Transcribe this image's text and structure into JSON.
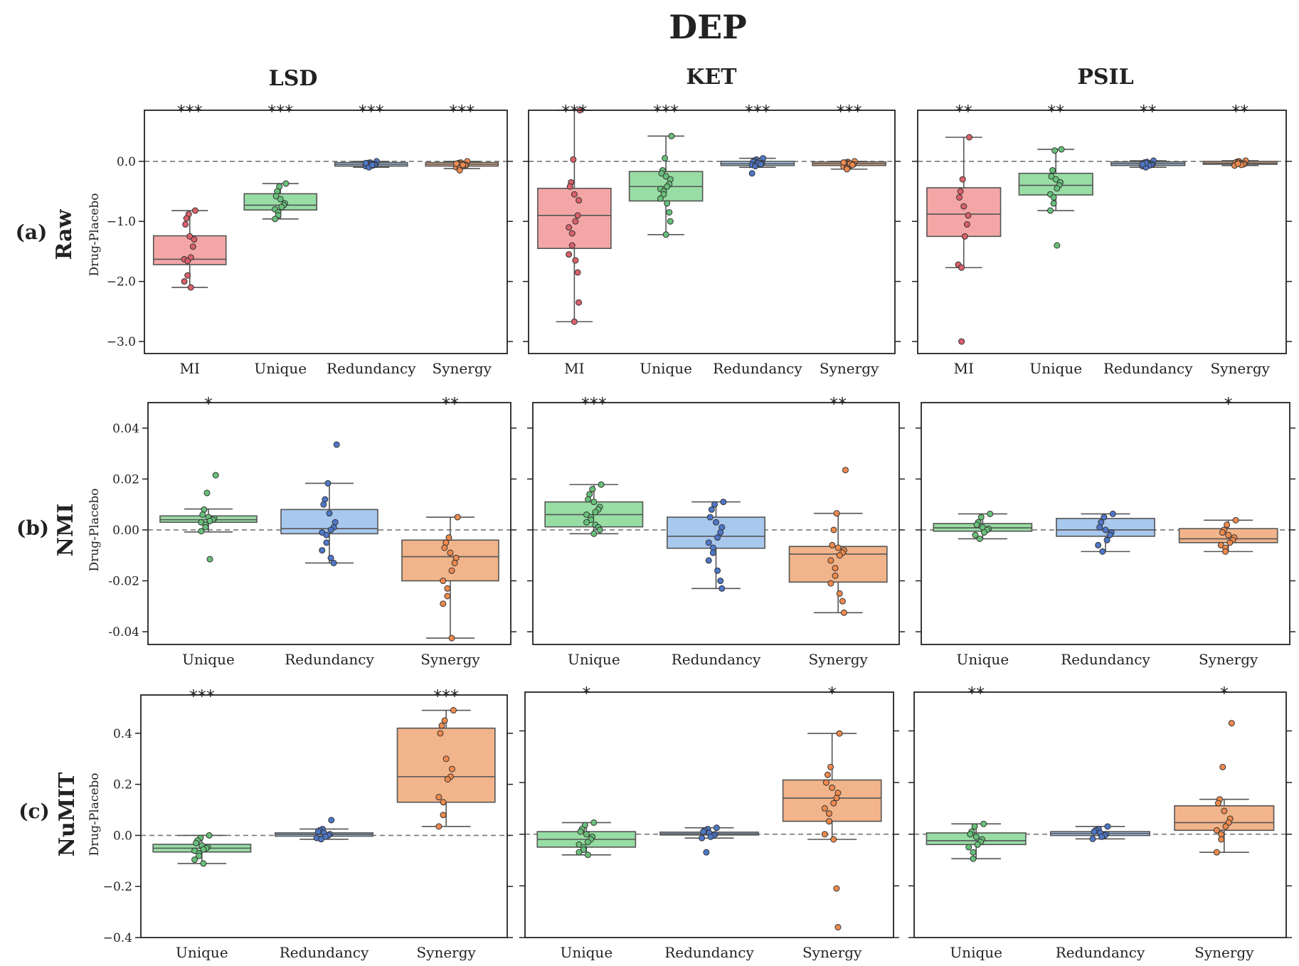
{
  "figure": {
    "title": "DEP",
    "columns": [
      "LSD",
      "KET",
      "PSIL"
    ],
    "rows": [
      {
        "tag": "(a)",
        "label": "Raw",
        "ylabel": "Drug-Placebo"
      },
      {
        "tag": "(b)",
        "label": "NMI",
        "ylabel": "Drug-Placebo"
      },
      {
        "tag": "(c)",
        "label": "NuMIT",
        "ylabel": "Drug-Placebo"
      }
    ],
    "colors": {
      "MI": "#f4a6a6",
      "Unique": "#98dda4",
      "Redundancy": "#a8c8ee",
      "Synergy": "#f2b48a",
      "MI_pt": "#d9606a",
      "Unique_pt": "#68c07a",
      "Redundancy_pt": "#4f77c8",
      "Synergy_pt": "#ee8a4e"
    }
  },
  "chart_data": [
    {
      "type": "box",
      "row": 0,
      "col": 0,
      "ylim": [
        -3.2,
        0.85
      ],
      "yticks": [
        0.0,
        -1.0,
        -2.0,
        -3.0
      ],
      "ytick_labels": [
        "0.0",
        "−1.0",
        "−2.0",
        "−3.0"
      ],
      "categories": [
        "MI",
        "Unique",
        "Redundancy",
        "Synergy"
      ],
      "significance": [
        "***",
        "***",
        "***",
        "***"
      ],
      "boxes": [
        {
          "q1": -1.72,
          "median": -1.63,
          "q3": -1.24,
          "whislo": -2.1,
          "whishi": -0.82,
          "points": [
            -0.82,
            -0.88,
            -0.95,
            -1.05,
            -1.25,
            -1.3,
            -1.42,
            -1.6,
            -1.63,
            -1.66,
            -1.9,
            -2.0,
            -2.1
          ]
        },
        {
          "q1": -0.81,
          "median": -0.73,
          "q3": -0.54,
          "whislo": -0.96,
          "whishi": -0.37,
          "points": [
            -0.37,
            -0.42,
            -0.5,
            -0.58,
            -0.63,
            -0.7,
            -0.73,
            -0.76,
            -0.8,
            -0.85,
            -0.9,
            -0.96
          ]
        },
        {
          "q1": -0.08,
          "median": -0.05,
          "q3": -0.02,
          "whislo": -0.1,
          "whishi": 0.0,
          "points": [
            0.0,
            -0.02,
            -0.03,
            -0.04,
            -0.05,
            -0.05,
            -0.06,
            -0.07,
            -0.08,
            -0.09,
            -0.1,
            -0.03,
            -0.06
          ]
        },
        {
          "q1": -0.08,
          "median": -0.05,
          "q3": -0.02,
          "whislo": -0.12,
          "whishi": 0.0,
          "points": [
            0.0,
            -0.02,
            -0.03,
            -0.04,
            -0.05,
            -0.06,
            -0.07,
            -0.08,
            -0.1,
            -0.12,
            -0.15,
            -0.04,
            -0.06
          ]
        }
      ]
    },
    {
      "type": "box",
      "row": 0,
      "col": 1,
      "ylim": [
        -3.2,
        0.85
      ],
      "yticks": [
        0.0,
        -1.0,
        -2.0,
        -3.0
      ],
      "categories": [
        "MI",
        "Unique",
        "Redundancy",
        "Synergy"
      ],
      "significance": [
        "***",
        "***",
        "***",
        "***"
      ],
      "boxes": [
        {
          "q1": -1.45,
          "median": -0.9,
          "q3": -0.45,
          "whislo": -2.67,
          "whishi": 0.85,
          "points": [
            0.85,
            0.03,
            -0.35,
            -0.42,
            -0.55,
            -0.65,
            -0.9,
            -1.0,
            -1.1,
            -1.2,
            -1.4,
            -1.55,
            -1.65,
            -1.85,
            -2.35,
            -2.67
          ]
        },
        {
          "q1": -0.66,
          "median": -0.42,
          "q3": -0.17,
          "whislo": -1.22,
          "whishi": 0.42,
          "points": [
            0.42,
            0.05,
            -0.15,
            -0.2,
            -0.25,
            -0.3,
            -0.38,
            -0.42,
            -0.46,
            -0.5,
            -0.55,
            -0.62,
            -0.7,
            -0.85,
            -1.0,
            -1.22
          ]
        },
        {
          "q1": -0.07,
          "median": -0.04,
          "q3": 0.0,
          "whislo": -0.1,
          "whishi": 0.05,
          "points": [
            0.05,
            0.03,
            0.01,
            -0.01,
            -0.02,
            -0.03,
            -0.04,
            -0.05,
            -0.06,
            -0.07,
            -0.08,
            -0.2,
            -0.03,
            -0.05
          ]
        },
        {
          "q1": -0.07,
          "median": -0.04,
          "q3": -0.01,
          "whislo": -0.13,
          "whishi": 0.0,
          "points": [
            0.0,
            -0.01,
            -0.02,
            -0.03,
            -0.04,
            -0.05,
            -0.06,
            -0.07,
            -0.09,
            -0.11,
            -0.13,
            -0.02,
            -0.04,
            -0.06
          ]
        }
      ]
    },
    {
      "type": "box",
      "row": 0,
      "col": 2,
      "ylim": [
        -3.2,
        0.85
      ],
      "yticks": [
        0.0,
        -1.0,
        -2.0,
        -3.0
      ],
      "categories": [
        "MI",
        "Unique",
        "Redundancy",
        "Synergy"
      ],
      "significance": [
        "**",
        "**",
        "**",
        "**"
      ],
      "boxes": [
        {
          "q1": -1.25,
          "median": -0.88,
          "q3": -0.44,
          "whislo": -1.77,
          "whishi": 0.4,
          "points": [
            0.4,
            -0.3,
            -0.5,
            -0.6,
            -0.75,
            -0.9,
            -1.05,
            -1.25,
            -1.72,
            -1.77,
            -3.0
          ]
        },
        {
          "q1": -0.56,
          "median": -0.4,
          "q3": -0.2,
          "whislo": -0.82,
          "whishi": 0.2,
          "points": [
            0.2,
            0.18,
            -0.15,
            -0.25,
            -0.3,
            -0.35,
            -0.4,
            -0.45,
            -0.55,
            -0.6,
            -0.7,
            -0.82,
            -1.4
          ]
        },
        {
          "q1": -0.07,
          "median": -0.04,
          "q3": -0.01,
          "whislo": -0.1,
          "whishi": 0.01,
          "points": [
            0.01,
            -0.01,
            -0.02,
            -0.03,
            -0.04,
            -0.05,
            -0.06,
            -0.07,
            -0.08,
            -0.1,
            -0.03,
            -0.05
          ]
        },
        {
          "q1": -0.05,
          "median": -0.03,
          "q3": 0.0,
          "whislo": -0.07,
          "whishi": 0.01,
          "points": [
            0.01,
            0.0,
            -0.01,
            -0.02,
            -0.03,
            -0.04,
            -0.05,
            -0.06,
            -0.07,
            -0.02,
            -0.04
          ]
        }
      ]
    },
    {
      "type": "box",
      "row": 1,
      "col": 0,
      "ylim": [
        -0.045,
        0.05
      ],
      "yticks": [
        0.04,
        0.02,
        0.0,
        -0.02,
        -0.04
      ],
      "ytick_labels": [
        "0.04",
        "0.02",
        "0.00",
        "-0.02",
        "-0.04"
      ],
      "categories": [
        "Unique",
        "Redundancy",
        "Synergy"
      ],
      "significance": [
        "*",
        "",
        "**"
      ],
      "boxes": [
        {
          "q1": 0.003,
          "median": 0.004,
          "q3": 0.0055,
          "whislo": -0.0008,
          "whishi": 0.0082,
          "points": [
            0.0215,
            0.0145,
            0.008,
            0.006,
            0.005,
            0.0045,
            0.004,
            0.0035,
            0.003,
            0.002,
            0.001,
            -0.0005,
            -0.0115
          ]
        },
        {
          "q1": -0.0015,
          "median": 0.0005,
          "q3": 0.008,
          "whislo": -0.013,
          "whishi": 0.0183,
          "points": [
            0.0335,
            0.0183,
            0.012,
            0.01,
            0.0065,
            0.003,
            0.001,
            0.0,
            -0.001,
            -0.002,
            -0.005,
            -0.008,
            -0.011,
            -0.013
          ]
        },
        {
          "q1": -0.02,
          "median": -0.0105,
          "q3": -0.004,
          "whislo": -0.0425,
          "whishi": 0.005,
          "points": [
            0.005,
            -0.003,
            -0.005,
            -0.007,
            -0.009,
            -0.011,
            -0.013,
            -0.016,
            -0.02,
            -0.023,
            -0.026,
            -0.029,
            -0.0425
          ]
        }
      ]
    },
    {
      "type": "box",
      "row": 1,
      "col": 1,
      "ylim": [
        -0.045,
        0.05
      ],
      "yticks": [
        0.04,
        0.02,
        0.0,
        -0.02,
        -0.04
      ],
      "categories": [
        "Unique",
        "Redundancy",
        "Synergy"
      ],
      "significance": [
        "***",
        "",
        "**"
      ],
      "boxes": [
        {
          "q1": 0.0012,
          "median": 0.006,
          "q3": 0.011,
          "whislo": -0.0015,
          "whishi": 0.0178,
          "points": [
            0.0178,
            0.016,
            0.014,
            0.012,
            0.011,
            0.009,
            0.008,
            0.007,
            0.006,
            0.005,
            0.004,
            0.003,
            0.002,
            0.001,
            0.0,
            -0.0015
          ]
        },
        {
          "q1": -0.0072,
          "median": -0.0025,
          "q3": 0.005,
          "whislo": -0.023,
          "whishi": 0.011,
          "points": [
            0.011,
            0.01,
            0.008,
            0.005,
            0.003,
            0.001,
            -0.001,
            -0.003,
            -0.005,
            -0.007,
            -0.009,
            -0.012,
            -0.016,
            -0.02,
            -0.023
          ]
        },
        {
          "q1": -0.0205,
          "median": -0.0095,
          "q3": -0.0065,
          "whislo": -0.0325,
          "whishi": 0.0065,
          "points": [
            0.0235,
            0.0065,
            0.0,
            -0.006,
            -0.007,
            -0.008,
            -0.009,
            -0.01,
            -0.012,
            -0.015,
            -0.018,
            -0.021,
            -0.025,
            -0.028,
            -0.0325
          ]
        }
      ]
    },
    {
      "type": "box",
      "row": 1,
      "col": 2,
      "ylim": [
        -0.045,
        0.05
      ],
      "yticks": [
        0.04,
        0.02,
        0.0,
        -0.02,
        -0.04
      ],
      "categories": [
        "Unique",
        "Redundancy",
        "Synergy"
      ],
      "significance": [
        "",
        "",
        "*"
      ],
      "boxes": [
        {
          "q1": -0.0005,
          "median": 0.0008,
          "q3": 0.0025,
          "whislo": -0.0035,
          "whishi": 0.0063,
          "points": [
            0.0063,
            0.005,
            0.003,
            0.002,
            0.001,
            0.0005,
            0.0,
            -0.001,
            -0.002,
            -0.0035
          ]
        },
        {
          "q1": -0.0025,
          "median": 0.0,
          "q3": 0.0045,
          "whislo": -0.0085,
          "whishi": 0.0063,
          "points": [
            0.0063,
            0.005,
            0.003,
            0.001,
            0.0,
            -0.001,
            -0.002,
            -0.004,
            -0.006,
            -0.0085
          ]
        },
        {
          "q1": -0.005,
          "median": -0.0035,
          "q3": 0.0005,
          "whislo": -0.0085,
          "whishi": 0.0038,
          "points": [
            0.0038,
            0.002,
            0.0,
            -0.001,
            -0.002,
            -0.003,
            -0.004,
            -0.005,
            -0.006,
            -0.007,
            -0.0085
          ]
        }
      ]
    },
    {
      "type": "box",
      "row": 2,
      "col": 0,
      "ylim": [
        -0.4,
        0.55
      ],
      "yticks": [
        0.4,
        0.2,
        0.0,
        -0.2,
        -0.4
      ],
      "ytick_labels": [
        "0.4",
        "0.2",
        "0.0",
        "−0.2",
        "−0.4"
      ],
      "categories": [
        "Unique",
        "Redundancy",
        "Synergy"
      ],
      "significance": [
        "***",
        "",
        "***"
      ],
      "boxes": [
        {
          "q1": -0.065,
          "median": -0.05,
          "q3": -0.035,
          "whislo": -0.11,
          "whishi": 0.0,
          "points": [
            0.0,
            -0.01,
            -0.02,
            -0.03,
            -0.04,
            -0.045,
            -0.05,
            -0.055,
            -0.06,
            -0.07,
            -0.08,
            -0.095,
            -0.11
          ]
        },
        {
          "q1": -0.003,
          "median": 0.004,
          "q3": 0.01,
          "whislo": -0.015,
          "whishi": 0.025,
          "points": [
            0.06,
            0.025,
            0.02,
            0.015,
            0.01,
            0.005,
            0.0,
            -0.005,
            -0.01,
            -0.015
          ]
        },
        {
          "q1": 0.13,
          "median": 0.23,
          "q3": 0.42,
          "whislo": 0.035,
          "whishi": 0.49,
          "points": [
            0.49,
            0.45,
            0.43,
            0.4,
            0.3,
            0.26,
            0.23,
            0.22,
            0.15,
            0.13,
            0.08,
            0.035
          ]
        }
      ]
    },
    {
      "type": "box",
      "row": 2,
      "col": 1,
      "ylim": [
        -0.4,
        0.55
      ],
      "yticks": [
        0.4,
        0.2,
        0.0,
        -0.2,
        -0.4
      ],
      "categories": [
        "Unique",
        "Redundancy",
        "Synergy"
      ],
      "significance": [
        "*",
        "",
        "*"
      ],
      "boxes": [
        {
          "q1": -0.05,
          "median": -0.02,
          "q3": 0.01,
          "whislo": -0.08,
          "whishi": 0.045,
          "points": [
            0.045,
            0.035,
            0.02,
            0.01,
            0.0,
            -0.01,
            -0.02,
            -0.03,
            -0.04,
            -0.05,
            -0.06,
            -0.07,
            -0.08
          ]
        },
        {
          "q1": -0.003,
          "median": 0.002,
          "q3": 0.008,
          "whislo": -0.015,
          "whishi": 0.025,
          "points": [
            0.025,
            0.02,
            0.015,
            0.01,
            0.005,
            0.0,
            -0.005,
            -0.01,
            -0.015,
            -0.07
          ]
        },
        {
          "q1": 0.05,
          "median": 0.14,
          "q3": 0.21,
          "whislo": -0.02,
          "whishi": 0.39,
          "points": [
            0.39,
            0.26,
            0.23,
            0.2,
            0.18,
            0.16,
            0.14,
            0.12,
            0.1,
            0.08,
            0.05,
            0.0,
            -0.02,
            -0.21,
            -0.36
          ]
        }
      ]
    },
    {
      "type": "box",
      "row": 2,
      "col": 2,
      "ylim": [
        -0.4,
        0.55
      ],
      "yticks": [
        0.4,
        0.2,
        0.0,
        -0.2,
        -0.4
      ],
      "categories": [
        "Unique",
        "Redundancy",
        "Synergy"
      ],
      "significance": [
        "**",
        "",
        "*"
      ],
      "boxes": [
        {
          "q1": -0.04,
          "median": -0.025,
          "q3": 0.005,
          "whislo": -0.095,
          "whishi": 0.04,
          "points": [
            0.04,
            0.03,
            0.01,
            0.0,
            -0.01,
            -0.02,
            -0.03,
            -0.04,
            -0.05,
            -0.07,
            -0.095
          ]
        },
        {
          "q1": -0.005,
          "median": 0.003,
          "q3": 0.01,
          "whislo": -0.018,
          "whishi": 0.03,
          "points": [
            0.03,
            0.02,
            0.015,
            0.01,
            0.005,
            0.0,
            -0.005,
            -0.01,
            -0.018
          ]
        },
        {
          "q1": 0.015,
          "median": 0.045,
          "q3": 0.11,
          "whislo": -0.07,
          "whishi": 0.135,
          "points": [
            0.43,
            0.26,
            0.135,
            0.12,
            0.09,
            0.06,
            0.045,
            0.03,
            0.015,
            0.0,
            -0.02,
            -0.07
          ]
        }
      ]
    }
  ]
}
